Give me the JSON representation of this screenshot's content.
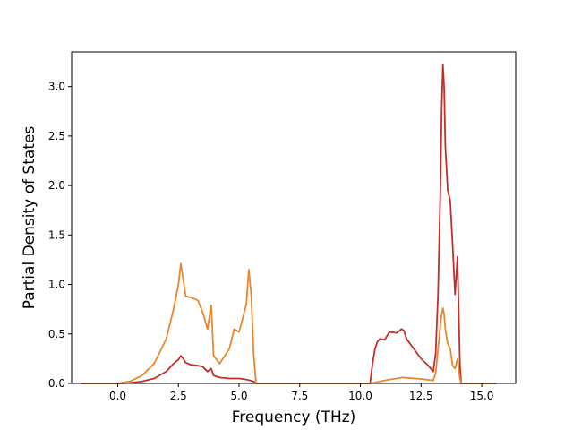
{
  "chart_data": {
    "type": "line",
    "title": "",
    "xlabel": "Frequency (THz)",
    "ylabel": "Partial Density of States",
    "xlim": [
      -1.9,
      16.4
    ],
    "ylim": [
      0,
      3.35
    ],
    "xticks": [
      0.0,
      2.5,
      5.0,
      7.5,
      10.0,
      12.5,
      15.0
    ],
    "xtick_labels": [
      "0.0",
      "2.5",
      "5.0",
      "7.5",
      "10.0",
      "12.5",
      "15.0"
    ],
    "yticks": [
      0.0,
      0.5,
      1.0,
      1.5,
      2.0,
      2.5,
      3.0
    ],
    "ytick_labels": [
      "0.0",
      "0.5",
      "1.0",
      "1.5",
      "2.0",
      "2.5",
      "3.0"
    ],
    "grid": false,
    "legend": "none",
    "series": [
      {
        "color": "#c62d2a",
        "points": [
          [
            -1.5,
            0.0
          ],
          [
            0.0,
            0.0
          ],
          [
            0.5,
            0.005
          ],
          [
            1.0,
            0.02
          ],
          [
            1.5,
            0.05
          ],
          [
            2.0,
            0.12
          ],
          [
            2.3,
            0.2
          ],
          [
            2.5,
            0.24
          ],
          [
            2.6,
            0.28
          ],
          [
            2.7,
            0.25
          ],
          [
            2.8,
            0.21
          ],
          [
            3.0,
            0.19
          ],
          [
            3.3,
            0.18
          ],
          [
            3.5,
            0.17
          ],
          [
            3.7,
            0.12
          ],
          [
            3.85,
            0.15
          ],
          [
            3.95,
            0.08
          ],
          [
            4.2,
            0.06
          ],
          [
            4.6,
            0.05
          ],
          [
            4.8,
            0.05
          ],
          [
            5.0,
            0.05
          ],
          [
            5.3,
            0.04
          ],
          [
            5.6,
            0.02
          ],
          [
            5.7,
            0.0
          ],
          [
            10.4,
            0.0
          ],
          [
            10.5,
            0.2
          ],
          [
            10.6,
            0.35
          ],
          [
            10.7,
            0.42
          ],
          [
            10.8,
            0.45
          ],
          [
            11.0,
            0.44
          ],
          [
            11.2,
            0.52
          ],
          [
            11.5,
            0.51
          ],
          [
            11.7,
            0.55
          ],
          [
            11.8,
            0.53
          ],
          [
            11.9,
            0.45
          ],
          [
            12.2,
            0.35
          ],
          [
            12.5,
            0.25
          ],
          [
            12.8,
            0.18
          ],
          [
            13.0,
            0.12
          ],
          [
            13.1,
            0.3
          ],
          [
            13.2,
            0.9
          ],
          [
            13.3,
            2.0
          ],
          [
            13.35,
            2.8
          ],
          [
            13.4,
            3.22
          ],
          [
            13.45,
            3.0
          ],
          [
            13.5,
            2.4
          ],
          [
            13.6,
            1.95
          ],
          [
            13.7,
            1.85
          ],
          [
            13.8,
            1.4
          ],
          [
            13.9,
            0.9
          ],
          [
            14.0,
            1.28
          ],
          [
            14.1,
            0.2
          ],
          [
            14.15,
            0.0
          ],
          [
            15.6,
            0.0
          ]
        ]
      },
      {
        "color": "#e8872d",
        "points": [
          [
            -1.5,
            0.0
          ],
          [
            0.0,
            0.0
          ],
          [
            0.5,
            0.02
          ],
          [
            1.0,
            0.08
          ],
          [
            1.5,
            0.2
          ],
          [
            2.0,
            0.45
          ],
          [
            2.3,
            0.75
          ],
          [
            2.5,
            1.0
          ],
          [
            2.6,
            1.21
          ],
          [
            2.7,
            1.05
          ],
          [
            2.8,
            0.88
          ],
          [
            3.0,
            0.87
          ],
          [
            3.3,
            0.84
          ],
          [
            3.5,
            0.72
          ],
          [
            3.7,
            0.55
          ],
          [
            3.85,
            0.79
          ],
          [
            3.95,
            0.28
          ],
          [
            4.2,
            0.2
          ],
          [
            4.6,
            0.35
          ],
          [
            4.8,
            0.55
          ],
          [
            5.0,
            0.52
          ],
          [
            5.3,
            0.8
          ],
          [
            5.4,
            1.15
          ],
          [
            5.5,
            0.9
          ],
          [
            5.6,
            0.3
          ],
          [
            5.7,
            0.0
          ],
          [
            10.4,
            0.0
          ],
          [
            10.8,
            0.02
          ],
          [
            11.2,
            0.04
          ],
          [
            11.5,
            0.05
          ],
          [
            11.7,
            0.06
          ],
          [
            12.0,
            0.055
          ],
          [
            12.5,
            0.045
          ],
          [
            13.0,
            0.03
          ],
          [
            13.1,
            0.1
          ],
          [
            13.2,
            0.35
          ],
          [
            13.3,
            0.6
          ],
          [
            13.35,
            0.7
          ],
          [
            13.4,
            0.76
          ],
          [
            13.45,
            0.7
          ],
          [
            13.5,
            0.55
          ],
          [
            13.6,
            0.4
          ],
          [
            13.7,
            0.35
          ],
          [
            13.8,
            0.18
          ],
          [
            13.9,
            0.15
          ],
          [
            14.0,
            0.25
          ],
          [
            14.1,
            0.05
          ],
          [
            14.15,
            0.0
          ],
          [
            15.6,
            0.0
          ]
        ]
      }
    ]
  }
}
